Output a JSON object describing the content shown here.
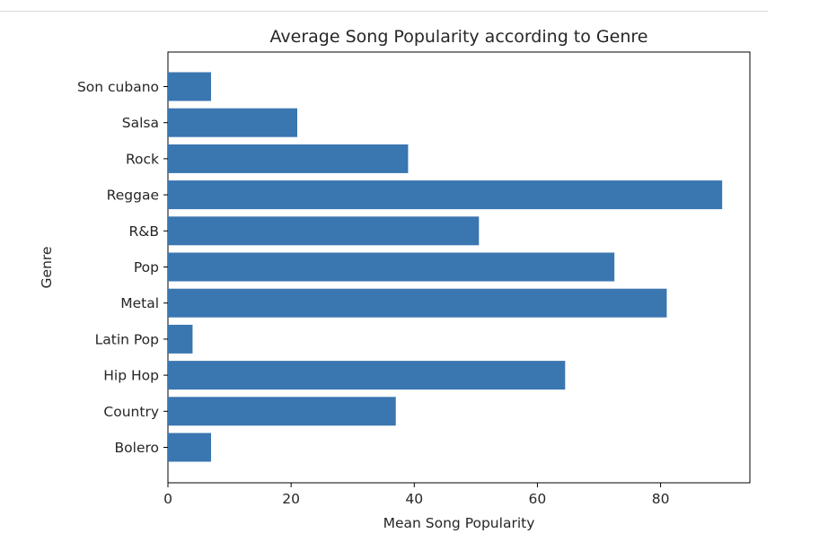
{
  "chart_data": {
    "type": "bar",
    "orientation": "horizontal",
    "title": "Average Song Popularity according to Genre",
    "xlabel": "Mean Song Popularity",
    "ylabel": "Genre",
    "categories": [
      "Bolero",
      "Country",
      "Hip Hop",
      "Latin Pop",
      "Metal",
      "Pop",
      "R&B",
      "Reggae",
      "Rock",
      "Salsa",
      "Son cubano"
    ],
    "values": [
      7,
      37,
      64.5,
      4,
      81,
      72.5,
      50.5,
      90,
      39,
      21,
      7
    ],
    "xlim": [
      0,
      94.5
    ],
    "xticks": [
      0,
      20,
      40,
      60,
      80
    ],
    "bar_color": "#3a76b0",
    "grid": false,
    "legend": false
  }
}
